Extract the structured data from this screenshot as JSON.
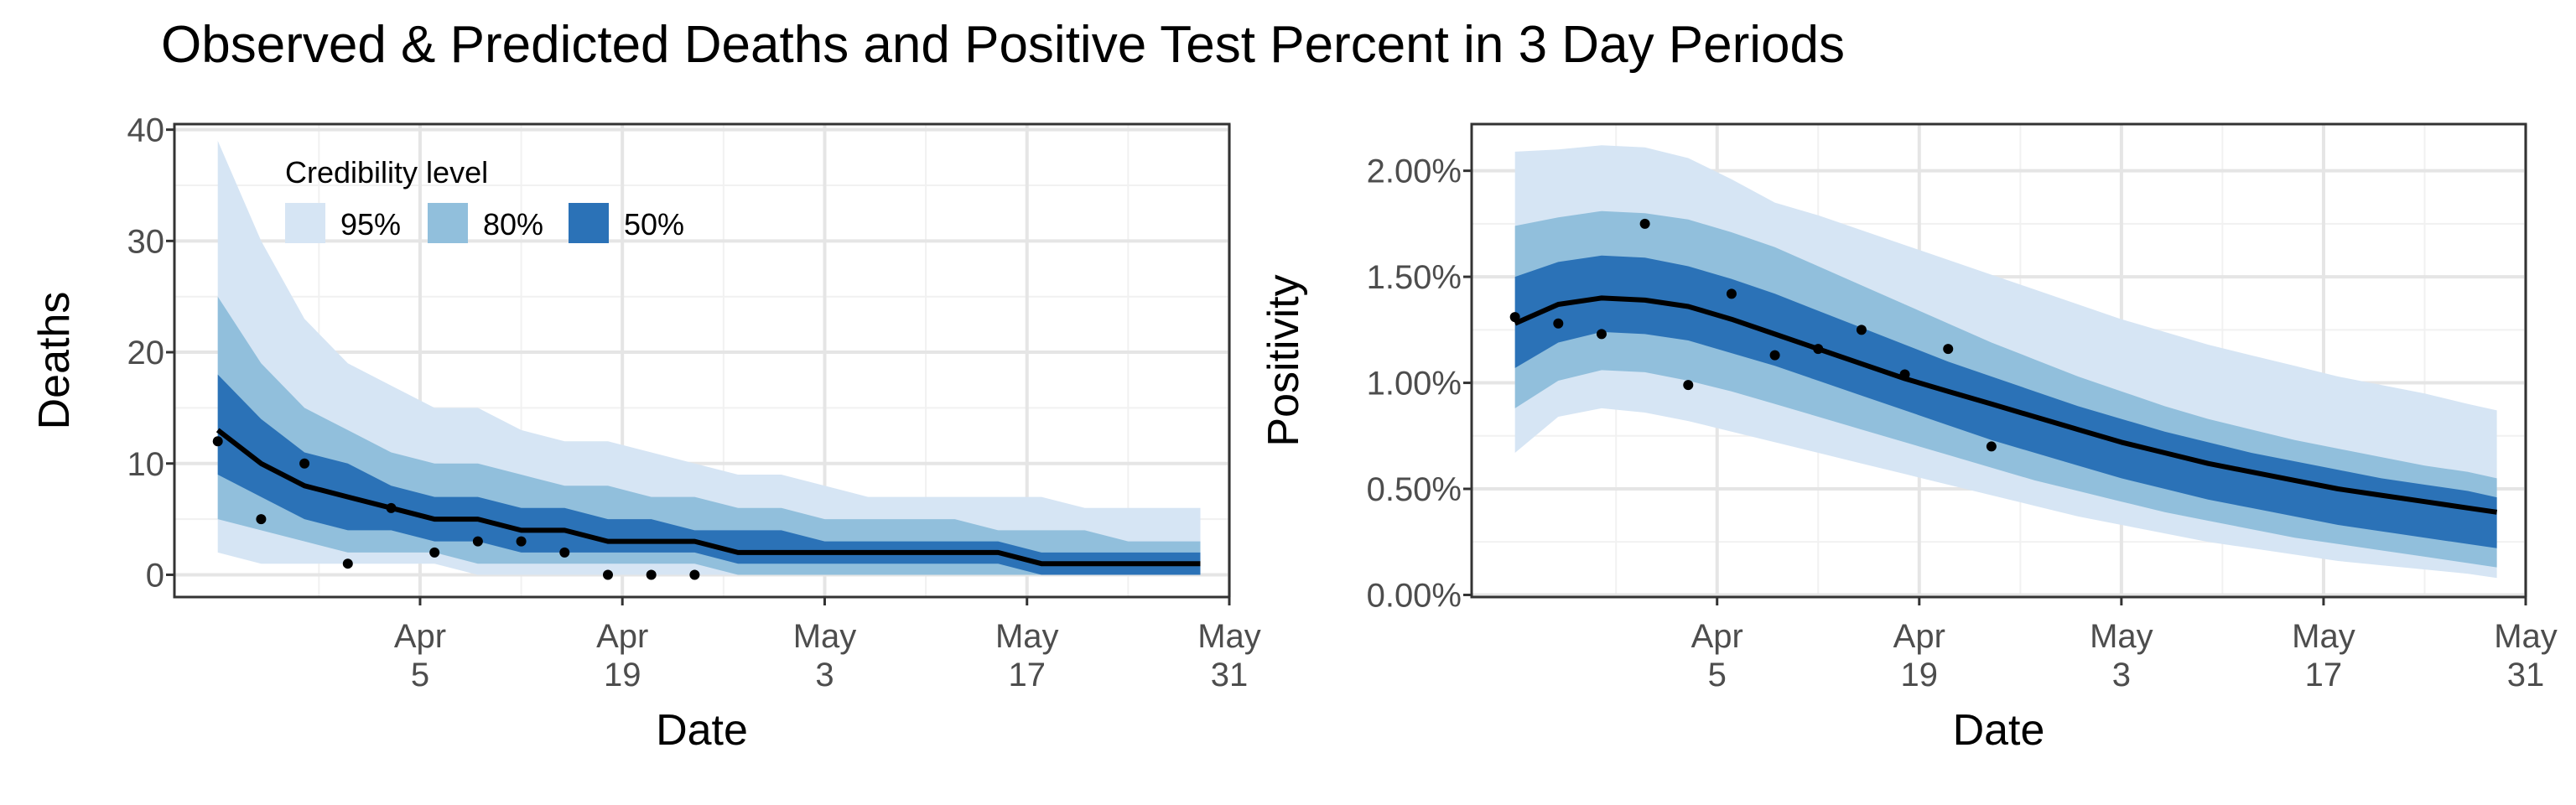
{
  "title": "Observed & Predicted Deaths and Positive Test Percent in 3 Day Periods",
  "colors": {
    "band95": "#d6e5f4",
    "band80": "#91bfdc",
    "band50": "#2b72b7",
    "median": "#000000",
    "points": "#000000",
    "grid_major": "#e5e5e5",
    "grid_minor": "#f1f1f1",
    "panel_border": "#333333"
  },
  "chart_data": [
    {
      "type": "area",
      "xlabel": "Date",
      "ylabel": "Deaths",
      "ylim": [
        -2,
        40.5
      ],
      "xlim": [
        "2020-03-19",
        "2020-05-31"
      ],
      "y_ticks": [
        0,
        10,
        20,
        30,
        40
      ],
      "y_tick_labels": [
        "0",
        "10",
        "20",
        "30",
        "40"
      ],
      "x_ticks": [
        "2020-04-05",
        "2020-04-19",
        "2020-05-03",
        "2020-05-17",
        "2020-05-31"
      ],
      "x_tick_labels": [
        [
          "Apr",
          "5"
        ],
        [
          "Apr",
          "19"
        ],
        [
          "May",
          "3"
        ],
        [
          "May",
          "17"
        ],
        [
          "May",
          "31"
        ]
      ],
      "grid": true,
      "legend": {
        "title": "Credibility level",
        "position": "top-left",
        "items": [
          "95%",
          "80%",
          "50%"
        ]
      },
      "x": [
        "2020-03-22",
        "2020-03-25",
        "2020-03-28",
        "2020-03-31",
        "2020-04-03",
        "2020-04-06",
        "2020-04-09",
        "2020-04-12",
        "2020-04-15",
        "2020-04-18",
        "2020-04-21",
        "2020-04-24",
        "2020-04-27",
        "2020-04-30",
        "2020-05-03",
        "2020-05-06",
        "2020-05-09",
        "2020-05-12",
        "2020-05-15",
        "2020-05-18",
        "2020-05-21",
        "2020-05-24",
        "2020-05-27",
        "2020-05-29"
      ],
      "series": [
        {
          "name": "95%",
          "lower": [
            2,
            1,
            1,
            1,
            1,
            1,
            0,
            0,
            0,
            0,
            0,
            0,
            0,
            0,
            0,
            0,
            0,
            0,
            0,
            0,
            0,
            0,
            0,
            0
          ],
          "upper": [
            39,
            30,
            23,
            19,
            17,
            15,
            15,
            13,
            12,
            12,
            11,
            10,
            9,
            9,
            8,
            7,
            7,
            7,
            7,
            7,
            6,
            6,
            6,
            6
          ]
        },
        {
          "name": "80%",
          "lower": [
            5,
            4,
            3,
            2,
            2,
            2,
            1,
            1,
            1,
            1,
            1,
            1,
            0,
            0,
            0,
            0,
            0,
            0,
            0,
            0,
            0,
            0,
            0,
            0
          ],
          "upper": [
            25,
            19,
            15,
            13,
            11,
            10,
            10,
            9,
            8,
            8,
            7,
            7,
            6,
            6,
            5,
            5,
            5,
            5,
            4,
            4,
            4,
            3,
            3,
            3
          ]
        },
        {
          "name": "50%",
          "lower": [
            9,
            7,
            5,
            4,
            4,
            3,
            3,
            2,
            2,
            2,
            2,
            2,
            1,
            1,
            1,
            1,
            1,
            1,
            1,
            0,
            0,
            0,
            0,
            0
          ],
          "upper": [
            18,
            14,
            11,
            10,
            8,
            7,
            7,
            6,
            6,
            5,
            5,
            4,
            4,
            4,
            3,
            3,
            3,
            3,
            3,
            2,
            2,
            2,
            2,
            2
          ]
        },
        {
          "name": "median",
          "values": [
            13,
            10,
            8,
            7,
            6,
            5,
            5,
            4,
            4,
            3,
            3,
            3,
            2,
            2,
            2,
            2,
            2,
            2,
            2,
            1,
            1,
            1,
            1,
            1
          ]
        },
        {
          "name": "observed",
          "points": [
            [
              "2020-03-22",
              12
            ],
            [
              "2020-03-25",
              5
            ],
            [
              "2020-03-28",
              10
            ],
            [
              "2020-03-31",
              1
            ],
            [
              "2020-04-03",
              6
            ],
            [
              "2020-04-06",
              2
            ],
            [
              "2020-04-09",
              3
            ],
            [
              "2020-04-12",
              3
            ],
            [
              "2020-04-15",
              2
            ],
            [
              "2020-04-18",
              0
            ],
            [
              "2020-04-21",
              0
            ],
            [
              "2020-04-24",
              0
            ]
          ]
        }
      ]
    },
    {
      "type": "area",
      "xlabel": "Date",
      "ylabel": "Positivity",
      "ylim": [
        -0.0001,
        0.0222
      ],
      "xlim": [
        "2020-03-19",
        "2020-05-31"
      ],
      "y_ticks": [
        0,
        0.005,
        0.01,
        0.015,
        0.02
      ],
      "y_tick_labels": [
        "0.00%",
        "0.50%",
        "1.00%",
        "1.50%",
        "2.00%"
      ],
      "x_ticks": [
        "2020-04-05",
        "2020-04-19",
        "2020-05-03",
        "2020-05-17",
        "2020-05-31"
      ],
      "x_tick_labels": [
        [
          "Apr",
          "5"
        ],
        [
          "Apr",
          "19"
        ],
        [
          "May",
          "3"
        ],
        [
          "May",
          "17"
        ],
        [
          "May",
          "31"
        ]
      ],
      "grid": true,
      "x": [
        "2020-03-22",
        "2020-03-25",
        "2020-03-28",
        "2020-03-31",
        "2020-04-03",
        "2020-04-06",
        "2020-04-09",
        "2020-04-12",
        "2020-04-15",
        "2020-04-18",
        "2020-04-21",
        "2020-04-24",
        "2020-04-27",
        "2020-04-30",
        "2020-05-03",
        "2020-05-06",
        "2020-05-09",
        "2020-05-12",
        "2020-05-15",
        "2020-05-18",
        "2020-05-21",
        "2020-05-24",
        "2020-05-27",
        "2020-05-29"
      ],
      "series": [
        {
          "name": "95%",
          "lower": [
            0.0067,
            0.0084,
            0.0088,
            0.0086,
            0.0082,
            0.0077,
            0.0072,
            0.0067,
            0.0062,
            0.0057,
            0.0052,
            0.0047,
            0.0042,
            0.0037,
            0.0033,
            0.0029,
            0.0025,
            0.0022,
            0.0019,
            0.0016,
            0.0014,
            0.0012,
            0.001,
            0.0008
          ]
        },
        {
          "name": "80%",
          "lower": [
            0.0088,
            0.0101,
            0.0106,
            0.0105,
            0.0101,
            0.0096,
            0.009,
            0.0084,
            0.0078,
            0.0072,
            0.0066,
            0.006,
            0.0054,
            0.0049,
            0.0044,
            0.0039,
            0.0035,
            0.0031,
            0.0027,
            0.0024,
            0.0021,
            0.0018,
            0.0015,
            0.0013
          ],
          "upper": [
            0.0174,
            0.0178,
            0.0181,
            0.018,
            0.0177,
            0.0171,
            0.0164,
            0.0155,
            0.0146,
            0.0137,
            0.0128,
            0.0119,
            0.0111,
            0.0103,
            0.0096,
            0.0089,
            0.0083,
            0.0078,
            0.0073,
            0.0069,
            0.0065,
            0.0061,
            0.0058,
            0.0055
          ]
        },
        {
          "name": "50%",
          "lower": [
            0.0107,
            0.0119,
            0.0124,
            0.0123,
            0.012,
            0.0114,
            0.0108,
            0.0101,
            0.0094,
            0.0087,
            0.008,
            0.0073,
            0.0067,
            0.0061,
            0.0055,
            0.005,
            0.0045,
            0.0041,
            0.0037,
            0.0033,
            0.003,
            0.0027,
            0.0024,
            0.0022
          ],
          "upper": [
            0.015,
            0.0157,
            0.016,
            0.0159,
            0.0155,
            0.0149,
            0.0142,
            0.0134,
            0.0126,
            0.0118,
            0.011,
            0.0103,
            0.0096,
            0.0089,
            0.0083,
            0.0077,
            0.0072,
            0.0067,
            0.0063,
            0.0059,
            0.0055,
            0.0052,
            0.0049,
            0.0046
          ]
        },
        {
          "name": "95% upper",
          "upper": [
            0.0209,
            0.021,
            0.0212,
            0.0211,
            0.0206,
            0.0196,
            0.0185,
            0.0179,
            0.0172,
            0.0165,
            0.0158,
            0.0151,
            0.0144,
            0.0137,
            0.013,
            0.0124,
            0.0118,
            0.0113,
            0.0108,
            0.0103,
            0.0099,
            0.0095,
            0.009,
            0.0087
          ]
        },
        {
          "name": "median",
          "values": [
            0.0128,
            0.0137,
            0.014,
            0.0139,
            0.0136,
            0.013,
            0.0123,
            0.0116,
            0.0109,
            0.0102,
            0.0096,
            0.009,
            0.0084,
            0.0078,
            0.0072,
            0.0067,
            0.0062,
            0.0058,
            0.0054,
            0.005,
            0.0047,
            0.0044,
            0.0041,
            0.0039
          ]
        },
        {
          "name": "observed",
          "points": [
            [
              "2020-03-22",
              0.0131
            ],
            [
              "2020-03-25",
              0.0128
            ],
            [
              "2020-03-28",
              0.0123
            ],
            [
              "2020-03-31",
              0.0175
            ],
            [
              "2020-04-03",
              0.0099
            ],
            [
              "2020-04-06",
              0.0142
            ],
            [
              "2020-04-09",
              0.0113
            ],
            [
              "2020-04-12",
              0.0116
            ],
            [
              "2020-04-15",
              0.0125
            ],
            [
              "2020-04-18",
              0.0104
            ],
            [
              "2020-04-21",
              0.0116
            ],
            [
              "2020-04-24",
              0.007
            ]
          ]
        }
      ]
    }
  ]
}
